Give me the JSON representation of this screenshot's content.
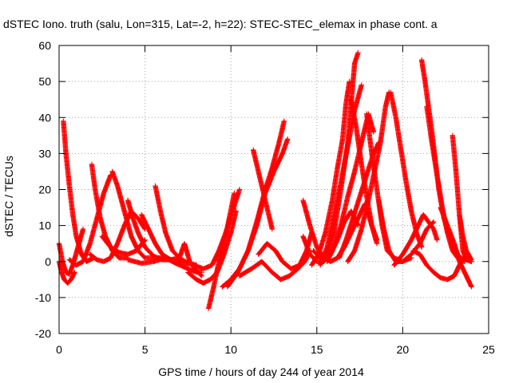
{
  "chart_data": {
    "type": "scatter",
    "title": "dSTEC Iono. truth (salu, Lon=315, Lat=-2, h=22): STEC-STEC_elemax in phase cont. a",
    "xlabel": "GPS time / hours of day 244 of year 2014",
    "ylabel": "dSTEC  / TECUs",
    "xlim": [
      0,
      25
    ],
    "ylim": [
      -20,
      60
    ],
    "xticks": [
      0,
      5,
      10,
      15,
      20,
      25
    ],
    "yticks": [
      -20,
      -10,
      0,
      10,
      20,
      30,
      40,
      50,
      60
    ],
    "xtick_labels": [
      "0",
      "5",
      "10",
      "15",
      "20",
      "25"
    ],
    "ytick_labels": [
      "-20",
      "-10",
      "0",
      "10",
      "20",
      "30",
      "40",
      "50",
      "60"
    ],
    "grid": true,
    "marker": "+",
    "series_color": "#ff0000",
    "series": [
      {
        "points": [
          [
            0.0,
            5
          ],
          [
            0.2,
            0
          ],
          [
            0.4,
            -3
          ],
          [
            0.6,
            -3.5
          ],
          [
            0.8,
            -1
          ],
          [
            1.1,
            4
          ],
          [
            1.4,
            9
          ]
        ]
      },
      {
        "points": [
          [
            0.0,
            0
          ],
          [
            0.15,
            -3
          ],
          [
            0.3,
            -5
          ],
          [
            0.5,
            -6
          ],
          [
            0.7,
            -5
          ],
          [
            0.9,
            -3
          ]
        ]
      },
      {
        "points": [
          [
            0.25,
            39
          ],
          [
            0.4,
            30
          ],
          [
            0.6,
            21
          ],
          [
            0.8,
            13
          ],
          [
            1.0,
            7
          ],
          [
            1.3,
            2
          ],
          [
            1.6,
            0
          ],
          [
            2.0,
            1
          ]
        ]
      },
      {
        "points": [
          [
            0.6,
            0.5
          ],
          [
            1.0,
            -1
          ],
          [
            1.4,
            0
          ],
          [
            1.8,
            5
          ],
          [
            2.2,
            12
          ],
          [
            2.6,
            19
          ],
          [
            3.0,
            24
          ]
        ]
      },
      {
        "points": [
          [
            1.9,
            27
          ],
          [
            2.1,
            20
          ],
          [
            2.4,
            12
          ],
          [
            2.7,
            7
          ],
          [
            3.1,
            3
          ],
          [
            3.5,
            1
          ],
          [
            4.0,
            1
          ]
        ]
      },
      {
        "points": [
          [
            1.8,
            2
          ],
          [
            2.2,
            0.5
          ],
          [
            2.6,
            0
          ],
          [
            3.0,
            1
          ],
          [
            3.4,
            5
          ],
          [
            3.8,
            10
          ],
          [
            4.2,
            14
          ],
          [
            4.6,
            12
          ],
          [
            5.0,
            9
          ]
        ]
      },
      {
        "points": [
          [
            3.1,
            25
          ],
          [
            3.4,
            21
          ],
          [
            3.8,
            14
          ],
          [
            4.2,
            7
          ],
          [
            4.6,
            3
          ],
          [
            5.0,
            1
          ],
          [
            5.6,
            1
          ],
          [
            6.2,
            1
          ]
        ]
      },
      {
        "points": [
          [
            2.5,
            7
          ],
          [
            3.0,
            4
          ],
          [
            3.5,
            2.5
          ],
          [
            4.0,
            2
          ],
          [
            4.5,
            3
          ],
          [
            5.0,
            6
          ]
        ]
      },
      {
        "points": [
          [
            4.0,
            17
          ],
          [
            4.3,
            12
          ],
          [
            4.6,
            8
          ],
          [
            5.0,
            4
          ],
          [
            5.5,
            1.5
          ],
          [
            6.0,
            0.5
          ],
          [
            6.5,
            0.5
          ],
          [
            7.0,
            1
          ],
          [
            7.3,
            5
          ],
          [
            7.6,
            0
          ],
          [
            7.9,
            -2
          ],
          [
            8.3,
            -4
          ]
        ]
      },
      {
        "points": [
          [
            4.8,
            13
          ],
          [
            5.2,
            9
          ],
          [
            5.6,
            5
          ],
          [
            6.0,
            2
          ],
          [
            6.5,
            0.5
          ],
          [
            7.0,
            0
          ],
          [
            7.5,
            -0.5
          ],
          [
            8.0,
            -1
          ]
        ]
      },
      {
        "points": [
          [
            5.6,
            21
          ],
          [
            5.9,
            14
          ],
          [
            6.2,
            8
          ],
          [
            6.6,
            3
          ],
          [
            7.0,
            1
          ],
          [
            7.5,
            -0.5
          ]
        ]
      },
      {
        "points": [
          [
            4.0,
            0.5
          ],
          [
            4.8,
            -0.5
          ],
          [
            5.5,
            0
          ],
          [
            6.2,
            1
          ],
          [
            6.8,
            -0.5
          ],
          [
            7.5,
            -2
          ],
          [
            8.0,
            -3
          ],
          [
            8.3,
            -3
          ]
        ]
      },
      {
        "points": [
          [
            7.5,
            -3
          ],
          [
            8.0,
            -5
          ],
          [
            8.4,
            -6
          ],
          [
            8.8,
            -5
          ],
          [
            9.2,
            -3
          ],
          [
            9.6,
            2
          ],
          [
            10.0,
            8
          ],
          [
            10.3,
            14
          ]
        ]
      },
      {
        "points": [
          [
            7.8,
            -1
          ],
          [
            8.4,
            -2
          ],
          [
            8.9,
            -1
          ],
          [
            9.3,
            3
          ],
          [
            9.7,
            8
          ],
          [
            10.1,
            14
          ],
          [
            10.5,
            20
          ]
        ]
      },
      {
        "points": [
          [
            8.7,
            -13
          ],
          [
            9.0,
            -7
          ],
          [
            9.3,
            0
          ],
          [
            9.6,
            5
          ],
          [
            9.9,
            12
          ],
          [
            10.2,
            19
          ]
        ]
      },
      {
        "points": [
          [
            9.5,
            -7
          ],
          [
            10.0,
            -5
          ],
          [
            10.5,
            -2
          ],
          [
            11.0,
            3
          ],
          [
            11.5,
            11
          ],
          [
            12.0,
            20
          ],
          [
            12.4,
            26
          ],
          [
            12.8,
            33
          ],
          [
            13.1,
            39
          ]
        ]
      },
      {
        "points": [
          [
            9.8,
            -7
          ],
          [
            10.4,
            -3
          ],
          [
            11.0,
            3
          ],
          [
            11.5,
            10
          ],
          [
            12.0,
            19
          ],
          [
            12.5,
            25
          ],
          [
            13.0,
            30
          ],
          [
            13.3,
            34
          ]
        ]
      },
      {
        "points": [
          [
            10.5,
            -4
          ],
          [
            11.2,
            -2
          ],
          [
            11.8,
            0
          ],
          [
            12.4,
            -3
          ],
          [
            12.9,
            -5
          ],
          [
            13.4,
            -4
          ],
          [
            13.9,
            -2
          ],
          [
            14.3,
            0
          ],
          [
            14.6,
            3
          ]
        ]
      },
      {
        "points": [
          [
            11.6,
            2
          ],
          [
            12.1,
            5
          ],
          [
            12.6,
            3
          ],
          [
            13.0,
            0
          ],
          [
            13.5,
            -2
          ],
          [
            14.0,
            -1
          ],
          [
            14.4,
            3
          ],
          [
            14.7,
            8
          ]
        ]
      },
      {
        "points": [
          [
            11.3,
            31
          ],
          [
            11.6,
            25
          ],
          [
            12.0,
            17
          ],
          [
            12.4,
            9
          ]
        ]
      },
      {
        "points": [
          [
            14.2,
            7
          ],
          [
            14.6,
            2
          ],
          [
            15.0,
            0
          ],
          [
            15.4,
            0
          ],
          [
            15.8,
            2
          ],
          [
            16.2,
            6
          ],
          [
            16.6,
            11
          ],
          [
            17.0,
            14
          ],
          [
            17.4,
            10
          ]
        ]
      },
      {
        "points": [
          [
            14.2,
            17
          ],
          [
            14.6,
            10
          ],
          [
            15.0,
            4
          ],
          [
            15.4,
            1
          ],
          [
            15.8,
            0
          ],
          [
            16.2,
            1
          ],
          [
            16.6,
            4
          ],
          [
            17.0,
            8
          ],
          [
            17.4,
            12
          ],
          [
            17.8,
            16
          ],
          [
            18.2,
            10
          ],
          [
            18.5,
            6
          ]
        ]
      },
      {
        "points": [
          [
            14.8,
            3
          ],
          [
            15.2,
            1
          ],
          [
            15.6,
            2
          ],
          [
            16.0,
            8
          ],
          [
            16.4,
            20
          ],
          [
            16.8,
            33
          ],
          [
            17.0,
            44
          ],
          [
            17.2,
            55
          ],
          [
            17.4,
            58
          ]
        ]
      },
      {
        "points": [
          [
            14.7,
            -1
          ],
          [
            15.1,
            2
          ],
          [
            15.5,
            8
          ],
          [
            15.9,
            17
          ],
          [
            16.2,
            26
          ],
          [
            16.5,
            34
          ],
          [
            16.7,
            44
          ],
          [
            16.9,
            50
          ]
        ]
      },
      {
        "points": [
          [
            15.2,
            -1
          ],
          [
            15.6,
            4
          ],
          [
            16.0,
            13
          ],
          [
            16.4,
            22
          ],
          [
            16.8,
            32
          ],
          [
            17.2,
            42
          ],
          [
            17.6,
            49
          ]
        ]
      },
      {
        "points": [
          [
            15.6,
            0
          ],
          [
            16.0,
            4
          ],
          [
            16.4,
            10
          ],
          [
            16.8,
            18
          ],
          [
            17.2,
            25
          ],
          [
            17.6,
            33
          ],
          [
            18.0,
            41
          ],
          [
            18.3,
            36
          ]
        ]
      },
      {
        "points": [
          [
            16.3,
            1
          ],
          [
            16.7,
            6
          ],
          [
            17.1,
            12
          ],
          [
            17.5,
            18
          ],
          [
            17.9,
            24
          ],
          [
            18.3,
            30
          ],
          [
            18.6,
            33
          ]
        ]
      },
      {
        "points": [
          [
            16.8,
            0
          ],
          [
            17.2,
            3
          ],
          [
            17.6,
            9
          ],
          [
            18.0,
            17
          ],
          [
            18.4,
            26
          ],
          [
            18.7,
            33
          ],
          [
            19.0,
            43
          ],
          [
            19.2,
            47
          ]
        ]
      },
      {
        "points": [
          [
            17.0,
            45
          ],
          [
            17.3,
            37
          ],
          [
            17.6,
            27
          ],
          [
            17.9,
            18
          ],
          [
            18.2,
            10
          ],
          [
            18.5,
            5
          ]
        ]
      },
      {
        "points": [
          [
            17.9,
            41
          ],
          [
            18.2,
            30
          ],
          [
            18.5,
            20
          ],
          [
            18.8,
            10
          ],
          [
            19.1,
            3
          ],
          [
            19.5,
            1
          ],
          [
            20.0,
            0
          ],
          [
            20.5,
            1
          ]
        ]
      },
      {
        "points": [
          [
            18.6,
            17
          ],
          [
            18.9,
            9
          ],
          [
            19.2,
            3
          ],
          [
            19.6,
            0
          ],
          [
            20.0,
            0
          ],
          [
            20.5,
            2
          ],
          [
            21.0,
            5
          ],
          [
            21.4,
            9
          ],
          [
            21.8,
            11
          ]
        ]
      },
      {
        "points": [
          [
            19.3,
            47
          ],
          [
            19.6,
            40
          ],
          [
            19.9,
            31
          ],
          [
            20.2,
            22
          ],
          [
            20.5,
            14
          ],
          [
            20.8,
            8
          ],
          [
            21.1,
            4
          ]
        ]
      },
      {
        "points": [
          [
            19.5,
            -1
          ],
          [
            20.0,
            2
          ],
          [
            20.5,
            6
          ],
          [
            20.9,
            10
          ],
          [
            21.2,
            13
          ],
          [
            21.5,
            11
          ],
          [
            21.8,
            9
          ],
          [
            22.0,
            6
          ]
        ]
      },
      {
        "points": [
          [
            21.1,
            56
          ],
          [
            21.3,
            50
          ],
          [
            21.5,
            43
          ],
          [
            21.7,
            36
          ],
          [
            21.9,
            28
          ],
          [
            22.1,
            20
          ],
          [
            22.4,
            12
          ],
          [
            22.8,
            6
          ],
          [
            23.2,
            2
          ],
          [
            23.6,
            0
          ]
        ]
      },
      {
        "points": [
          [
            21.4,
            43
          ],
          [
            21.7,
            33
          ],
          [
            22.0,
            24
          ],
          [
            22.3,
            15
          ],
          [
            22.6,
            8
          ],
          [
            22.9,
            3
          ],
          [
            23.2,
            1
          ],
          [
            23.6,
            0
          ]
        ]
      },
      {
        "points": [
          [
            20.6,
            3
          ],
          [
            21.0,
            2
          ],
          [
            21.4,
            -1
          ],
          [
            21.8,
            -3
          ],
          [
            22.2,
            -4.5
          ],
          [
            22.6,
            -5
          ],
          [
            23.0,
            -4
          ],
          [
            23.3,
            -1
          ],
          [
            23.6,
            1
          ],
          [
            24.0,
            0
          ]
        ]
      },
      {
        "points": [
          [
            22.2,
            15
          ],
          [
            22.6,
            10
          ],
          [
            23.0,
            5
          ],
          [
            23.3,
            0
          ],
          [
            23.6,
            -3
          ],
          [
            23.9,
            -6
          ],
          [
            24.0,
            -7
          ]
        ]
      },
      {
        "points": [
          [
            22.9,
            35
          ],
          [
            23.1,
            25
          ],
          [
            23.3,
            13
          ],
          [
            23.5,
            3
          ],
          [
            23.7,
            0.5
          ],
          [
            24.0,
            0
          ]
        ]
      },
      {
        "points": [
          [
            23.3,
            13
          ],
          [
            23.5,
            7
          ],
          [
            23.7,
            3
          ],
          [
            24.0,
            0.5
          ]
        ]
      }
    ]
  }
}
